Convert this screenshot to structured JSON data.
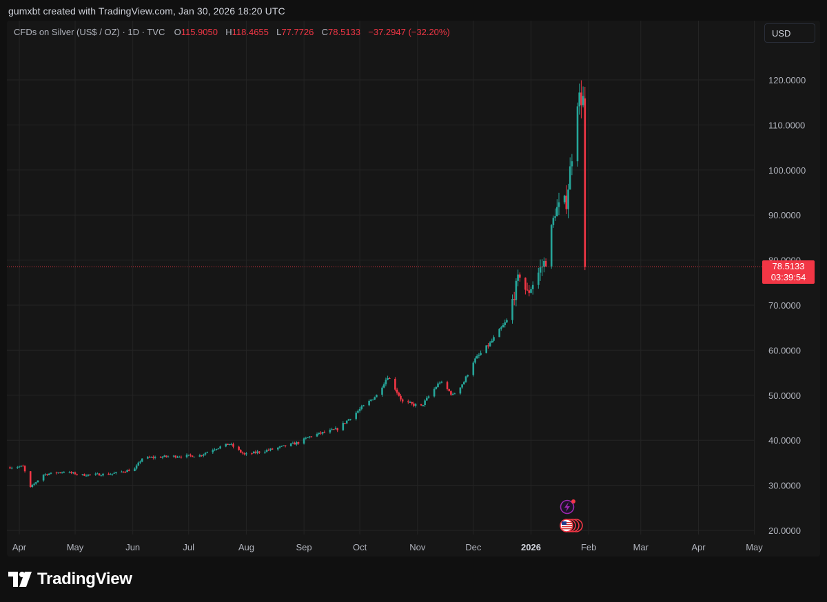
{
  "credit": "gumxbt created with TradingView.com, Jan 30, 2026 18:20 UTC",
  "legend": {
    "title": "CFDs on Silver (US$ / OZ) · 1D · TVC",
    "o_label": "O",
    "o_value": "115.9050",
    "h_label": "H",
    "h_value": "118.4655",
    "l_label": "L",
    "l_value": "77.7726",
    "c_label": "C",
    "c_value": "78.5133",
    "change": "−37.2947 (−32.20%)"
  },
  "currency_button": "USD",
  "price_tag": {
    "price": "78.5133",
    "countdown": "03:39:54"
  },
  "logo_text": "TradingView",
  "colors": {
    "up": "#26a69a",
    "down": "#f23645",
    "grid": "#242424",
    "text": "#b2b5be"
  },
  "chart_data": {
    "type": "candlestick",
    "y_axis": {
      "min": 20,
      "max": 122,
      "ticks": [
        "20.0000",
        "30.0000",
        "40.0000",
        "50.0000",
        "60.0000",
        "70.0000",
        "80.0000",
        "90.0000",
        "100.0000",
        "110.0000",
        "120.0000"
      ],
      "side": "right"
    },
    "x_axis": {
      "labels": [
        "Apr",
        "May",
        "Jun",
        "Jul",
        "Aug",
        "Sep",
        "Oct",
        "Nov",
        "Dec",
        "2026",
        "Feb",
        "Mar",
        "Apr",
        "May"
      ],
      "bold_label": "2026",
      "start": "2025-03-27",
      "end": "2026-05-15"
    },
    "last_price": 78.5133,
    "keypoints": [
      [
        "2025-03-27",
        34.0
      ],
      [
        "2025-04-03",
        34.2
      ],
      [
        "2025-04-07",
        29.5
      ],
      [
        "2025-04-14",
        32.4
      ],
      [
        "2025-04-25",
        33.0
      ],
      [
        "2025-05-05",
        32.3
      ],
      [
        "2025-05-20",
        32.5
      ],
      [
        "2025-06-02",
        33.6
      ],
      [
        "2025-06-06",
        36.0
      ],
      [
        "2025-06-20",
        36.4
      ],
      [
        "2025-07-07",
        36.6
      ],
      [
        "2025-07-14",
        38.0
      ],
      [
        "2025-07-23",
        39.2
      ],
      [
        "2025-07-31",
        36.8
      ],
      [
        "2025-08-15",
        38.0
      ],
      [
        "2025-08-29",
        39.5
      ],
      [
        "2025-09-05",
        41.0
      ],
      [
        "2025-09-19",
        42.5
      ],
      [
        "2025-09-30",
        46.5
      ],
      [
        "2025-10-10",
        50.0
      ],
      [
        "2025-10-16",
        54.2
      ],
      [
        "2025-10-20",
        51.5
      ],
      [
        "2025-10-24",
        48.5
      ],
      [
        "2025-11-03",
        47.5
      ],
      [
        "2025-11-13",
        53.0
      ],
      [
        "2025-11-20",
        50.0
      ],
      [
        "2025-11-26",
        53.0
      ],
      [
        "2025-12-01",
        57.5
      ],
      [
        "2025-12-10",
        61.5
      ],
      [
        "2025-12-19",
        66.5
      ],
      [
        "2025-12-26",
        77.0
      ],
      [
        "2025-12-30",
        72.5
      ],
      [
        "2026-01-06",
        78.0
      ],
      [
        "2026-01-09",
        80.0
      ],
      [
        "2026-01-14",
        91.0
      ],
      [
        "2026-01-20",
        93.0
      ],
      [
        "2026-01-23",
        103.5
      ],
      [
        "2026-01-26",
        116.0
      ],
      [
        "2026-01-29",
        115.9
      ]
    ],
    "last_candle": {
      "date": "2026-01-30",
      "open": 115.905,
      "high": 118.4655,
      "low": 77.7726,
      "close": 78.5133
    }
  },
  "event_markers": {
    "earnings_icon": "lightning-bolt-icon",
    "economic_icon": "us-flag-icon"
  }
}
